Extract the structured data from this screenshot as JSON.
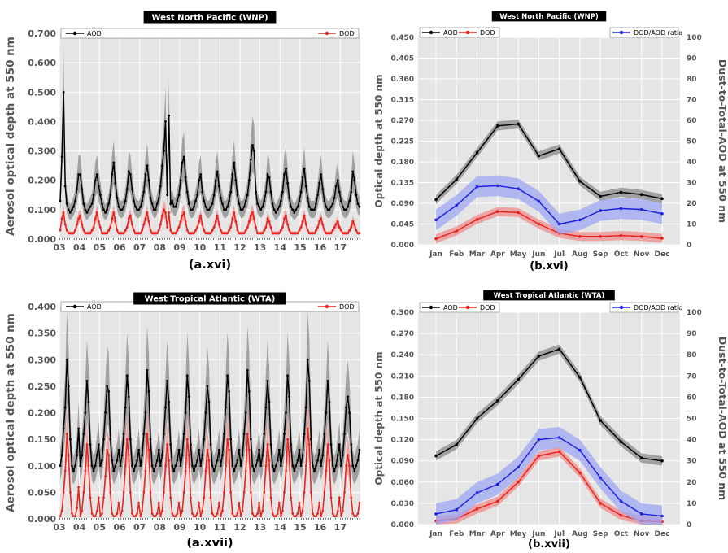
{
  "figure": {
    "panels": [
      {
        "id": "a16",
        "title": "West North Pacific (WNP)",
        "panel_label": "(a.xvi)"
      },
      {
        "id": "b16",
        "title": "West North Pacific (WNP)",
        "panel_label": "(b.xvi)"
      },
      {
        "id": "a17",
        "title": "West Tropical Atlantic (WTA)",
        "panel_label": "(a.xvii)"
      },
      {
        "id": "b17",
        "title": "West Tropical Atlantic (WTA)",
        "panel_label": "(b.xvii)"
      }
    ],
    "colors": {
      "aod": "#000000",
      "dod": "#e8231e",
      "ratio": "#1f1fe6",
      "aod_band": "#8a8a8a",
      "dod_band": "#f08c8c",
      "ratio_band": "#9ea6f2",
      "plot_bg": "#e5e5e5",
      "grid": "#ffffff",
      "title_bg": "#000000"
    }
  },
  "chart_data": [
    {
      "panel": "a16",
      "type": "line",
      "title": "West North Pacific (WNP)",
      "ylabel": "Aerosol optical depth at 550 nm",
      "ylim": [
        0,
        0.7
      ],
      "yticks": [
        "0.000",
        "0.100",
        "0.200",
        "0.300",
        "0.400",
        "0.500",
        "0.600",
        "0.700"
      ],
      "xlim": [
        2003,
        2018
      ],
      "xticks": [
        "03",
        "04",
        "05",
        "06",
        "07",
        "08",
        "09",
        "10",
        "11",
        "12",
        "13",
        "14",
        "15",
        "16",
        "17"
      ],
      "legend": {
        "left": "AOD",
        "right": "DOD"
      },
      "series": [
        {
          "name": "AOD",
          "start": 2003,
          "points_per_year": 12,
          "values": [
            0.13,
            0.28,
            0.5,
            0.18,
            0.12,
            0.1,
            0.09,
            0.1,
            0.11,
            0.13,
            0.17,
            0.22,
            0.22,
            0.17,
            0.12,
            0.1,
            0.09,
            0.1,
            0.11,
            0.12,
            0.15,
            0.2,
            0.22,
            0.18,
            0.15,
            0.12,
            0.1,
            0.09,
            0.1,
            0.12,
            0.15,
            0.22,
            0.26,
            0.19,
            0.14,
            0.11,
            0.1,
            0.1,
            0.11,
            0.13,
            0.17,
            0.23,
            0.22,
            0.17,
            0.13,
            0.11,
            0.1,
            0.1,
            0.11,
            0.13,
            0.16,
            0.22,
            0.25,
            0.2,
            0.14,
            0.12,
            0.1,
            0.1,
            0.12,
            0.14,
            0.18,
            0.25,
            0.3,
            0.4,
            0.15,
            0.42,
            0.12,
            0.13,
            0.11,
            0.11,
            0.13,
            0.15,
            0.2,
            0.26,
            0.28,
            0.21,
            0.16,
            0.12,
            0.1,
            0.1,
            0.11,
            0.13,
            0.15,
            0.2,
            0.22,
            0.16,
            0.13,
            0.11,
            0.1,
            0.1,
            0.11,
            0.12,
            0.15,
            0.2,
            0.23,
            0.18,
            0.14,
            0.12,
            0.1,
            0.1,
            0.11,
            0.13,
            0.16,
            0.22,
            0.26,
            0.2,
            0.15,
            0.12,
            0.1,
            0.1,
            0.11,
            0.13,
            0.15,
            0.2,
            0.27,
            0.32,
            0.3,
            0.16,
            0.12,
            0.11,
            0.1,
            0.11,
            0.13,
            0.16,
            0.22,
            0.21,
            0.16,
            0.12,
            0.1,
            0.09,
            0.1,
            0.11,
            0.13,
            0.16,
            0.22,
            0.24,
            0.19,
            0.14,
            0.11,
            0.1,
            0.09,
            0.1,
            0.11,
            0.13,
            0.16,
            0.21,
            0.24,
            0.18,
            0.14,
            0.11,
            0.1,
            0.1,
            0.1,
            0.12,
            0.15,
            0.19,
            0.22,
            0.17,
            0.13,
            0.11,
            0.1,
            0.1,
            0.11,
            0.12,
            0.14,
            0.18,
            0.2,
            0.16,
            0.13,
            0.11,
            0.1,
            0.1,
            0.11,
            0.13,
            0.16,
            0.23,
            0.2,
            0.15,
            0.12,
            0.11
          ]
        },
        {
          "name": "DOD",
          "start": 2003,
          "points_per_year": 12,
          "values": [
            0.03,
            0.07,
            0.09,
            0.05,
            0.03,
            0.02,
            0.02,
            0.02,
            0.02,
            0.03,
            0.05,
            0.07,
            0.08,
            0.05,
            0.03,
            0.02,
            0.02,
            0.02,
            0.02,
            0.03,
            0.04,
            0.07,
            0.09,
            0.06,
            0.04,
            0.02,
            0.02,
            0.02,
            0.02,
            0.03,
            0.04,
            0.07,
            0.09,
            0.06,
            0.03,
            0.02,
            0.02,
            0.02,
            0.02,
            0.03,
            0.04,
            0.07,
            0.08,
            0.05,
            0.03,
            0.02,
            0.02,
            0.02,
            0.02,
            0.03,
            0.05,
            0.07,
            0.09,
            0.06,
            0.03,
            0.02,
            0.02,
            0.02,
            0.02,
            0.03,
            0.05,
            0.08,
            0.1,
            0.09,
            0.04,
            0.09,
            0.03,
            0.02,
            0.02,
            0.02,
            0.03,
            0.04,
            0.06,
            0.08,
            0.09,
            0.06,
            0.03,
            0.02,
            0.02,
            0.02,
            0.02,
            0.03,
            0.04,
            0.06,
            0.08,
            0.05,
            0.03,
            0.02,
            0.02,
            0.02,
            0.02,
            0.03,
            0.04,
            0.06,
            0.08,
            0.05,
            0.03,
            0.02,
            0.02,
            0.02,
            0.02,
            0.03,
            0.04,
            0.07,
            0.09,
            0.06,
            0.03,
            0.02,
            0.02,
            0.02,
            0.02,
            0.03,
            0.04,
            0.06,
            0.08,
            0.09,
            0.07,
            0.04,
            0.02,
            0.02,
            0.02,
            0.02,
            0.03,
            0.04,
            0.07,
            0.06,
            0.04,
            0.02,
            0.02,
            0.02,
            0.02,
            0.02,
            0.03,
            0.04,
            0.07,
            0.08,
            0.05,
            0.03,
            0.02,
            0.02,
            0.02,
            0.02,
            0.02,
            0.03,
            0.04,
            0.06,
            0.08,
            0.05,
            0.03,
            0.02,
            0.02,
            0.02,
            0.02,
            0.03,
            0.04,
            0.06,
            0.07,
            0.05,
            0.03,
            0.02,
            0.02,
            0.02,
            0.02,
            0.03,
            0.04,
            0.05,
            0.06,
            0.04,
            0.03,
            0.02,
            0.02,
            0.02,
            0.02,
            0.03,
            0.04,
            0.06,
            0.05,
            0.03,
            0.02,
            0.02
          ]
        }
      ]
    },
    {
      "panel": "b16",
      "type": "line",
      "title": "West North Pacific (WNP)",
      "ylabel": "Optical depth at 550 nm",
      "y2label": "Dust-to-Total-AOD at 550 nm",
      "ylim": [
        0,
        0.45
      ],
      "yticks": [
        "0.000",
        "0.045",
        "0.090",
        "0.135",
        "0.180",
        "0.225",
        "0.270",
        "0.315",
        "0.360",
        "0.405",
        "0.450"
      ],
      "y2lim": [
        0,
        100
      ],
      "y2ticks": [
        "0",
        "10",
        "20",
        "30",
        "40",
        "50",
        "60",
        "70",
        "80",
        "90",
        "100"
      ],
      "categories": [
        "Jan",
        "Feb",
        "Mar",
        "Apr",
        "May",
        "Jun",
        "Jul",
        "Aug",
        "Sep",
        "Oct",
        "Nov",
        "Dec"
      ],
      "legend": {
        "left": [
          "AOD",
          "DOD"
        ],
        "right": "DOD/AOD ratio"
      },
      "series": [
        {
          "name": "AOD",
          "axis": "left",
          "values": [
            0.098,
            0.142,
            0.2,
            0.258,
            0.262,
            0.193,
            0.208,
            0.138,
            0.105,
            0.114,
            0.109,
            0.1
          ]
        },
        {
          "name": "DOD",
          "axis": "left",
          "values": [
            0.013,
            0.03,
            0.055,
            0.072,
            0.07,
            0.045,
            0.025,
            0.018,
            0.018,
            0.02,
            0.018,
            0.014
          ]
        },
        {
          "name": "DOD/AOD ratio",
          "axis": "right",
          "values": [
            12,
            19,
            28,
            28.5,
            27,
            21,
            10,
            12,
            16.5,
            17.5,
            17,
            15
          ]
        }
      ]
    },
    {
      "panel": "a17",
      "type": "line",
      "title": "West Tropical Atlantic (WTA)",
      "ylabel": "Aerosol optical depth at 550 nm",
      "ylim": [
        0,
        0.4
      ],
      "yticks": [
        "0.000",
        "0.050",
        "0.100",
        "0.150",
        "0.200",
        "0.250",
        "0.300",
        "0.350",
        "0.400"
      ],
      "xlim": [
        2003,
        2018
      ],
      "xticks": [
        "03",
        "04",
        "05",
        "06",
        "07",
        "08",
        "09",
        "10",
        "11",
        "12",
        "13",
        "14",
        "15",
        "16",
        "17"
      ],
      "legend": {
        "left": "AOD",
        "right": "DOD"
      },
      "series": [
        {
          "name": "AOD",
          "start": 2003,
          "points_per_year": 12,
          "values": [
            0.1,
            0.12,
            0.17,
            0.21,
            0.3,
            0.25,
            0.15,
            0.1,
            0.09,
            0.1,
            0.12,
            0.17,
            0.1,
            0.12,
            0.16,
            0.2,
            0.26,
            0.22,
            0.14,
            0.1,
            0.09,
            0.1,
            0.12,
            0.14,
            0.1,
            0.11,
            0.15,
            0.2,
            0.25,
            0.24,
            0.15,
            0.11,
            0.09,
            0.1,
            0.11,
            0.13,
            0.1,
            0.12,
            0.16,
            0.21,
            0.27,
            0.23,
            0.15,
            0.1,
            0.09,
            0.1,
            0.11,
            0.13,
            0.1,
            0.12,
            0.16,
            0.2,
            0.28,
            0.24,
            0.15,
            0.1,
            0.09,
            0.1,
            0.11,
            0.13,
            0.1,
            0.12,
            0.16,
            0.21,
            0.26,
            0.22,
            0.14,
            0.1,
            0.09,
            0.1,
            0.11,
            0.13,
            0.1,
            0.12,
            0.16,
            0.2,
            0.27,
            0.23,
            0.14,
            0.1,
            0.09,
            0.1,
            0.11,
            0.13,
            0.1,
            0.12,
            0.15,
            0.2,
            0.25,
            0.22,
            0.14,
            0.1,
            0.09,
            0.1,
            0.11,
            0.13,
            0.1,
            0.12,
            0.16,
            0.21,
            0.27,
            0.24,
            0.15,
            0.1,
            0.09,
            0.1,
            0.11,
            0.13,
            0.1,
            0.12,
            0.16,
            0.2,
            0.28,
            0.24,
            0.15,
            0.1,
            0.09,
            0.1,
            0.11,
            0.13,
            0.1,
            0.12,
            0.16,
            0.21,
            0.26,
            0.22,
            0.14,
            0.1,
            0.09,
            0.1,
            0.11,
            0.13,
            0.1,
            0.12,
            0.16,
            0.2,
            0.27,
            0.23,
            0.14,
            0.1,
            0.09,
            0.1,
            0.11,
            0.13,
            0.1,
            0.12,
            0.16,
            0.21,
            0.3,
            0.26,
            0.15,
            0.1,
            0.09,
            0.1,
            0.11,
            0.13,
            0.1,
            0.12,
            0.16,
            0.2,
            0.26,
            0.22,
            0.14,
            0.1,
            0.09,
            0.1,
            0.12,
            0.14,
            0.1,
            0.12,
            0.16,
            0.21,
            0.23,
            0.2,
            0.14,
            0.1,
            0.09,
            0.1,
            0.11,
            0.13
          ]
        },
        {
          "name": "DOD",
          "start": 2003,
          "points_per_year": 12,
          "values": [
            0.005,
            0.015,
            0.05,
            0.09,
            0.16,
            0.12,
            0.05,
            0.01,
            0.005,
            0.005,
            0.02,
            0.06,
            0.005,
            0.015,
            0.05,
            0.09,
            0.14,
            0.1,
            0.04,
            0.01,
            0.005,
            0.005,
            0.015,
            0.04,
            0.005,
            0.01,
            0.04,
            0.08,
            0.13,
            0.12,
            0.05,
            0.01,
            0.005,
            0.005,
            0.01,
            0.03,
            0.005,
            0.015,
            0.05,
            0.1,
            0.15,
            0.12,
            0.05,
            0.01,
            0.005,
            0.005,
            0.01,
            0.03,
            0.005,
            0.015,
            0.05,
            0.09,
            0.16,
            0.13,
            0.05,
            0.01,
            0.005,
            0.005,
            0.01,
            0.03,
            0.005,
            0.015,
            0.05,
            0.1,
            0.14,
            0.11,
            0.04,
            0.01,
            0.005,
            0.005,
            0.01,
            0.03,
            0.005,
            0.015,
            0.05,
            0.09,
            0.15,
            0.12,
            0.04,
            0.01,
            0.005,
            0.005,
            0.01,
            0.03,
            0.005,
            0.015,
            0.04,
            0.09,
            0.13,
            0.11,
            0.04,
            0.01,
            0.005,
            0.005,
            0.01,
            0.03,
            0.005,
            0.015,
            0.05,
            0.1,
            0.15,
            0.13,
            0.05,
            0.01,
            0.005,
            0.005,
            0.01,
            0.03,
            0.005,
            0.015,
            0.05,
            0.09,
            0.16,
            0.13,
            0.05,
            0.01,
            0.005,
            0.005,
            0.01,
            0.03,
            0.005,
            0.015,
            0.05,
            0.1,
            0.14,
            0.11,
            0.04,
            0.01,
            0.005,
            0.005,
            0.01,
            0.03,
            0.005,
            0.015,
            0.05,
            0.09,
            0.15,
            0.12,
            0.04,
            0.01,
            0.005,
            0.005,
            0.01,
            0.03,
            0.005,
            0.015,
            0.05,
            0.1,
            0.17,
            0.14,
            0.05,
            0.01,
            0.005,
            0.005,
            0.01,
            0.03,
            0.005,
            0.015,
            0.05,
            0.09,
            0.14,
            0.11,
            0.04,
            0.01,
            0.005,
            0.005,
            0.015,
            0.04,
            0.005,
            0.015,
            0.05,
            0.1,
            0.12,
            0.1,
            0.04,
            0.01,
            0.005,
            0.005,
            0.01,
            0.03
          ]
        }
      ]
    },
    {
      "panel": "b17",
      "type": "line",
      "title": "West Tropical Atlantic (WTA)",
      "ylabel": "Optical depth at 550 nm",
      "y2label": "Dust-to-Total-AOD at 550 nm",
      "ylim": [
        0,
        0.3
      ],
      "yticks": [
        "0.000",
        "0.030",
        "0.060",
        "0.090",
        "0.120",
        "0.150",
        "0.180",
        "0.210",
        "0.240",
        "0.270",
        "0.300"
      ],
      "y2lim": [
        0,
        100
      ],
      "y2ticks": [
        "0",
        "10",
        "20",
        "30",
        "40",
        "50",
        "60",
        "70",
        "80",
        "90",
        "100"
      ],
      "categories": [
        "Jan",
        "Feb",
        "Mar",
        "Apr",
        "May",
        "Jun",
        "Jul",
        "Aug",
        "Sep",
        "Oct",
        "Nov",
        "Dec"
      ],
      "legend": {
        "left": [
          "AOD",
          "DOD"
        ],
        "right": "DOD/AOD ratio"
      },
      "series": [
        {
          "name": "AOD",
          "axis": "left",
          "values": [
            0.097,
            0.113,
            0.15,
            0.175,
            0.205,
            0.238,
            0.248,
            0.208,
            0.147,
            0.117,
            0.094,
            0.09
          ]
        },
        {
          "name": "DOD",
          "axis": "left",
          "values": [
            0.005,
            0.008,
            0.022,
            0.033,
            0.06,
            0.097,
            0.103,
            0.073,
            0.03,
            0.013,
            0.005,
            0.004
          ]
        },
        {
          "name": "DOD/AOD ratio",
          "axis": "right",
          "values": [
            5,
            7,
            15,
            19,
            27,
            40,
            41,
            35,
            22,
            11,
            5,
            4
          ]
        }
      ]
    }
  ]
}
